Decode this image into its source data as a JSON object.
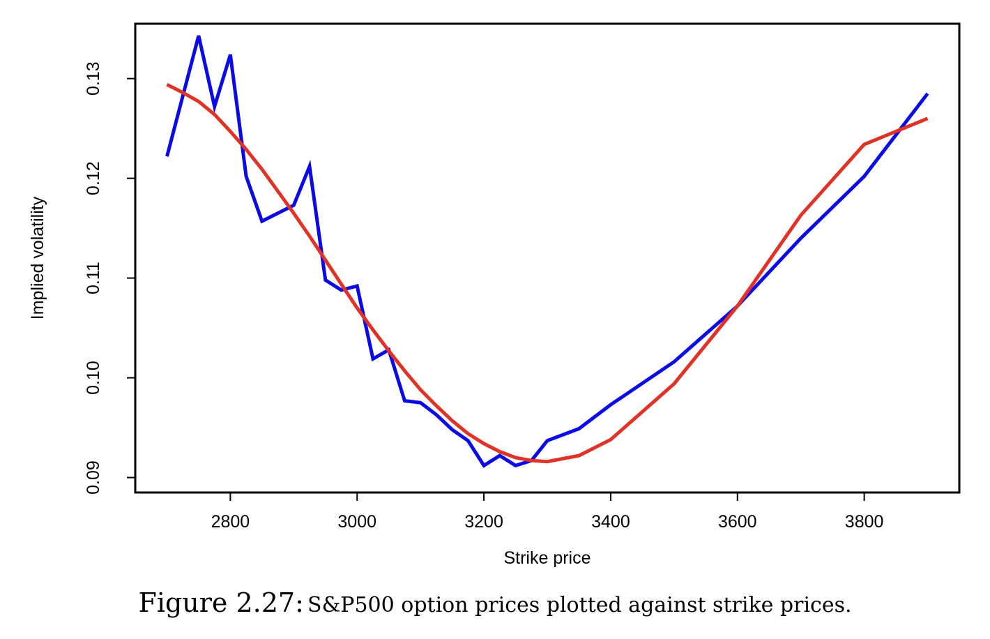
{
  "chart_data": {
    "type": "line",
    "title": "",
    "xlabel": "Strike price",
    "ylabel": "Implied volatility",
    "xlim": [
      2650,
      3950
    ],
    "ylim": [
      0.0885,
      0.1355
    ],
    "x_ticks": [
      2800,
      3000,
      3200,
      3400,
      3600,
      3800
    ],
    "x_tick_labels": [
      "2800",
      "3000",
      "3200",
      "3400",
      "3600",
      "3800"
    ],
    "y_ticks": [
      0.09,
      0.1,
      0.11,
      0.12,
      0.13
    ],
    "y_tick_labels": [
      "0.09",
      "0.10",
      "0.11",
      "0.12",
      "0.13"
    ],
    "grid": false,
    "legend": "none",
    "series": [
      {
        "color": "#0a0ae6",
        "x": [
          2700,
          2750,
          2775,
          2800,
          2825,
          2850,
          2900,
          2925,
          2950,
          2975,
          3000,
          3025,
          3050,
          3075,
          3100,
          3125,
          3150,
          3175,
          3200,
          3225,
          3250,
          3275,
          3300,
          3350,
          3400,
          3500,
          3600,
          3700,
          3800,
          3900
        ],
        "y": [
          0.1222,
          0.1343,
          0.1272,
          0.1324,
          0.1202,
          0.1157,
          0.1173,
          0.1212,
          0.1098,
          0.1088,
          0.1092,
          0.1019,
          0.1028,
          0.0977,
          0.0975,
          0.0963,
          0.0948,
          0.0937,
          0.0912,
          0.0922,
          0.0912,
          0.0917,
          0.0937,
          0.0949,
          0.0973,
          0.1016,
          0.1072,
          0.114,
          0.1202,
          0.1285
        ]
      },
      {
        "color": "#e03226",
        "x": [
          2700,
          2725,
          2750,
          2775,
          2800,
          2825,
          2850,
          2875,
          2900,
          2925,
          2950,
          2975,
          3000,
          3025,
          3050,
          3075,
          3100,
          3125,
          3150,
          3175,
          3200,
          3225,
          3250,
          3275,
          3300,
          3350,
          3400,
          3500,
          3600,
          3700,
          3800,
          3900
        ],
        "y": [
          0.1294,
          0.1286,
          0.1277,
          0.1264,
          0.1247,
          0.1229,
          0.1209,
          0.1187,
          0.1165,
          0.1142,
          0.1118,
          0.1094,
          0.107,
          0.1048,
          0.1027,
          0.1007,
          0.0988,
          0.0972,
          0.0957,
          0.0944,
          0.0934,
          0.0926,
          0.092,
          0.0917,
          0.0916,
          0.0922,
          0.0938,
          0.0994,
          0.1072,
          0.1163,
          0.1234,
          0.126
        ]
      }
    ]
  },
  "caption": {
    "label": "Figure 2.27:",
    "text": "S&P500 option prices plotted against strike prices."
  }
}
